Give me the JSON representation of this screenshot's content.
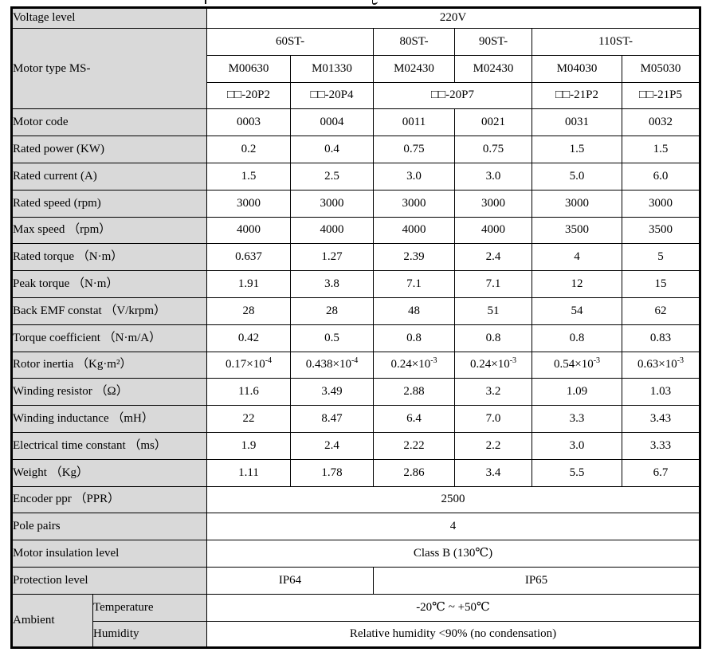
{
  "document": {
    "colors": {
      "label_bg": "#d9d9d9",
      "border": "#000000",
      "text": "#000000",
      "cell_bg": "#ffffff"
    },
    "table": {
      "rows": [
        {
          "cells": [
            {
              "text": "Voltage level",
              "label": true,
              "colspan": 2
            },
            {
              "text": "220V",
              "colspan": 6
            }
          ]
        },
        {
          "cells": [
            {
              "text": "Motor type MS-",
              "label": true,
              "colspan": 2,
              "rowspan": 3
            },
            {
              "text": "60ST-",
              "colspan": 2
            },
            {
              "text": "80ST-"
            },
            {
              "text": "90ST-"
            },
            {
              "text": "110ST-",
              "colspan": 2
            }
          ]
        },
        {
          "cells": [
            {
              "text": "M00630"
            },
            {
              "text": "M01330"
            },
            {
              "text": "M02430"
            },
            {
              "text": "M02430"
            },
            {
              "text": "M04030"
            },
            {
              "text": "M05030"
            }
          ]
        },
        {
          "cells": [
            {
              "text": "□□-20P2"
            },
            {
              "text": "□□-20P4"
            },
            {
              "text": "□□-20P7",
              "colspan": 2
            },
            {
              "text": "□□-21P2"
            },
            {
              "text": "□□-21P5"
            }
          ]
        },
        {
          "cells": [
            {
              "text": "Motor code",
              "label": true,
              "colspan": 2
            },
            {
              "text": "0003"
            },
            {
              "text": "0004"
            },
            {
              "text": "0011"
            },
            {
              "text": "0021"
            },
            {
              "text": "0031"
            },
            {
              "text": "0032"
            }
          ]
        },
        {
          "cells": [
            {
              "text": "Rated power (KW)",
              "label": true,
              "colspan": 2
            },
            {
              "text": "0.2"
            },
            {
              "text": "0.4"
            },
            {
              "text": "0.75"
            },
            {
              "text": "0.75"
            },
            {
              "text": "1.5"
            },
            {
              "text": "1.5"
            }
          ]
        },
        {
          "cells": [
            {
              "text": "Rated current (A)",
              "label": true,
              "colspan": 2
            },
            {
              "text": "1.5"
            },
            {
              "text": "2.5"
            },
            {
              "text": "3.0"
            },
            {
              "text": "3.0"
            },
            {
              "text": "5.0"
            },
            {
              "text": "6.0"
            }
          ]
        },
        {
          "cells": [
            {
              "text": "Rated speed (rpm)",
              "label": true,
              "colspan": 2
            },
            {
              "text": "3000"
            },
            {
              "text": "3000"
            },
            {
              "text": "3000"
            },
            {
              "text": "3000"
            },
            {
              "text": "3000"
            },
            {
              "text": "3000"
            }
          ]
        },
        {
          "cells": [
            {
              "text": "Max speed （rpm）",
              "label": true,
              "colspan": 2
            },
            {
              "text": "4000"
            },
            {
              "text": "4000"
            },
            {
              "text": "4000"
            },
            {
              "text": "4000"
            },
            {
              "text": "3500"
            },
            {
              "text": "3500"
            }
          ]
        },
        {
          "cells": [
            {
              "text": "Rated torque （N·m）",
              "label": true,
              "colspan": 2
            },
            {
              "text": "0.637"
            },
            {
              "text": "1.27"
            },
            {
              "text": "2.39"
            },
            {
              "text": "2.4"
            },
            {
              "text": "4"
            },
            {
              "text": "5"
            }
          ]
        },
        {
          "cells": [
            {
              "text": "Peak torque （N·m）",
              "label": true,
              "colspan": 2
            },
            {
              "text": "1.91"
            },
            {
              "text": "3.8"
            },
            {
              "text": "7.1"
            },
            {
              "text": "7.1"
            },
            {
              "text": "12"
            },
            {
              "text": "15"
            }
          ]
        },
        {
          "cells": [
            {
              "text": "Back EMF constat （V/krpm）",
              "label": true,
              "colspan": 2
            },
            {
              "text": "28"
            },
            {
              "text": "28"
            },
            {
              "text": "48"
            },
            {
              "text": "51"
            },
            {
              "text": "54"
            },
            {
              "text": "62"
            }
          ]
        },
        {
          "cells": [
            {
              "text": "Torque coefficient （N·m/A）",
              "label": true,
              "colspan": 2
            },
            {
              "text": "0.42"
            },
            {
              "text": "0.5"
            },
            {
              "text": "0.8"
            },
            {
              "text": "0.8"
            },
            {
              "text": "0.8"
            },
            {
              "text": "0.83"
            }
          ]
        },
        {
          "cells": [
            {
              "text": "Rotor inertia （Kg·m²）",
              "label": true,
              "colspan": 2
            },
            {
              "text": "0.17×10",
              "sup": "-4"
            },
            {
              "text": "0.438×10",
              "sup": "-4"
            },
            {
              "text": "0.24×10",
              "sup": "-3"
            },
            {
              "text": "0.24×10",
              "sup": "-3"
            },
            {
              "text": "0.54×10",
              "sup": "-3"
            },
            {
              "text": "0.63×10",
              "sup": "-3"
            }
          ]
        },
        {
          "cells": [
            {
              "text": "Winding resistor （Ω）",
              "label": true,
              "colspan": 2
            },
            {
              "text": "11.6"
            },
            {
              "text": "3.49"
            },
            {
              "text": "2.88"
            },
            {
              "text": "3.2"
            },
            {
              "text": "1.09"
            },
            {
              "text": "1.03"
            }
          ]
        },
        {
          "cells": [
            {
              "text": "Winding inductance （mH）",
              "label": true,
              "colspan": 2
            },
            {
              "text": "22"
            },
            {
              "text": "8.47"
            },
            {
              "text": "6.4"
            },
            {
              "text": "7.0"
            },
            {
              "text": "3.3"
            },
            {
              "text": "3.43"
            }
          ]
        },
        {
          "cells": [
            {
              "text": "Electrical time constant （ms）",
              "label": true,
              "colspan": 2
            },
            {
              "text": "1.9"
            },
            {
              "text": "2.4"
            },
            {
              "text": "2.22"
            },
            {
              "text": "2.2"
            },
            {
              "text": "3.0"
            },
            {
              "text": "3.33"
            }
          ]
        },
        {
          "cells": [
            {
              "text": "Weight （Kg）",
              "label": true,
              "colspan": 2
            },
            {
              "text": "1.11"
            },
            {
              "text": "1.78"
            },
            {
              "text": "2.86"
            },
            {
              "text": "3.4"
            },
            {
              "text": "5.5"
            },
            {
              "text": "6.7"
            }
          ]
        },
        {
          "cells": [
            {
              "text": "Encoder ppr （PPR）",
              "label": true,
              "colspan": 2
            },
            {
              "text": "2500",
              "colspan": 6
            }
          ]
        },
        {
          "cells": [
            {
              "text": "Pole pairs",
              "label": true,
              "colspan": 2
            },
            {
              "text": "4",
              "colspan": 6
            }
          ]
        },
        {
          "cells": [
            {
              "text": "Motor insulation level",
              "label": true,
              "colspan": 2
            },
            {
              "text": "Class B (130℃)",
              "colspan": 6
            }
          ]
        },
        {
          "cells": [
            {
              "text": "Protection level",
              "label": true,
              "colspan": 2
            },
            {
              "text": "IP64",
              "colspan": 2
            },
            {
              "text": "IP65",
              "colspan": 4
            }
          ]
        },
        {
          "cells": [
            {
              "text": "Ambient",
              "label": true,
              "rowspan": 2
            },
            {
              "text": "Temperature",
              "label": true
            },
            {
              "text": "-20℃ ~ +50℃",
              "colspan": 6
            }
          ]
        },
        {
          "cells": [
            {
              "text": "Humidity",
              "label": true
            },
            {
              "text": "Relative humidity <90% (no condensation)",
              "colspan": 6
            }
          ]
        }
      ]
    }
  }
}
